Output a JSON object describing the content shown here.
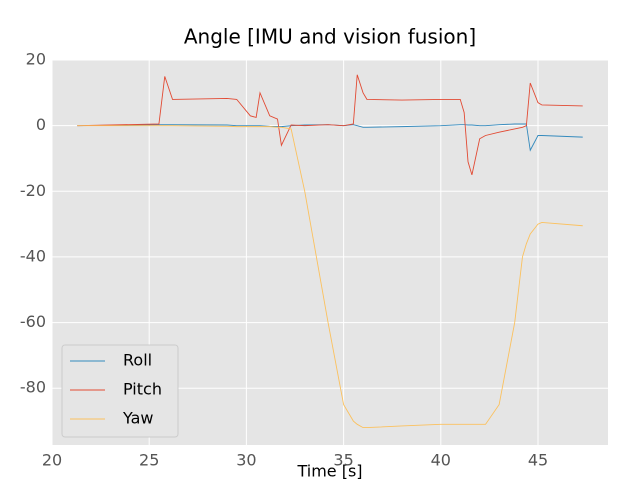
{
  "chart_data": {
    "type": "line",
    "title": "Angle [IMU and vision fusion]",
    "x_label": "Time [s]",
    "x": [
      21.3,
      25.5,
      25.8,
      26.2,
      29,
      29.5,
      30.2,
      30.5,
      30.7,
      31.2,
      31.6,
      31.8,
      32.3,
      33,
      34.2,
      35,
      35.5,
      35.7,
      36,
      36.2,
      38,
      40,
      41,
      41.2,
      41.4,
      41.6,
      42,
      42.3,
      43,
      43.8,
      44.2,
      44.4,
      44.6,
      45,
      45.2,
      47.3
    ],
    "series": [
      {
        "name": "Roll",
        "color": "#348ABD",
        "values": [
          0,
          0.3,
          0.3,
          0.3,
          0.2,
          0,
          0,
          0,
          0,
          -0.2,
          -0.3,
          -0.3,
          0,
          0.2,
          0.3,
          0,
          0.3,
          0,
          -0.5,
          -0.5,
          -0.3,
          0,
          0.3,
          0.3,
          0.2,
          0.2,
          0,
          0,
          0.3,
          0.5,
          0.5,
          0.5,
          -7.5,
          -3,
          -3,
          -3.5
        ]
      },
      {
        "name": "Pitch",
        "color": "#E24A33",
        "values": [
          0,
          0.5,
          15,
          8,
          8.3,
          8,
          3,
          2.5,
          10,
          3,
          2,
          -6,
          0.2,
          0,
          0.3,
          0,
          0.5,
          15.5,
          10,
          8,
          7.8,
          8,
          8,
          4,
          -11,
          -15,
          -4,
          -3,
          -2,
          -1,
          -0.5,
          0,
          13,
          7,
          6.3,
          6
        ]
      },
      {
        "name": "Yaw",
        "color": "#FBC15E",
        "values": [
          0,
          0,
          0,
          0,
          -0.2,
          -0.3,
          -0.3,
          -0.3,
          -0.3,
          -0.3,
          -0.5,
          -0.5,
          -1,
          -20,
          -60,
          -85,
          -90,
          -91,
          -92,
          -92,
          -91.5,
          -91,
          -91,
          -91,
          -91,
          -91,
          -91,
          -91,
          -85,
          -60,
          -40,
          -36,
          -33,
          -30,
          -29.5,
          -30.5
        ]
      }
    ],
    "xlim": [
      20,
      48.6
    ],
    "ylim": [
      -97.3,
      20
    ],
    "xticks": [
      20,
      25,
      30,
      35,
      40,
      45
    ],
    "yticks": [
      -80,
      -60,
      -40,
      -20,
      0,
      20
    ],
    "grid": true,
    "legend": "lower left"
  }
}
